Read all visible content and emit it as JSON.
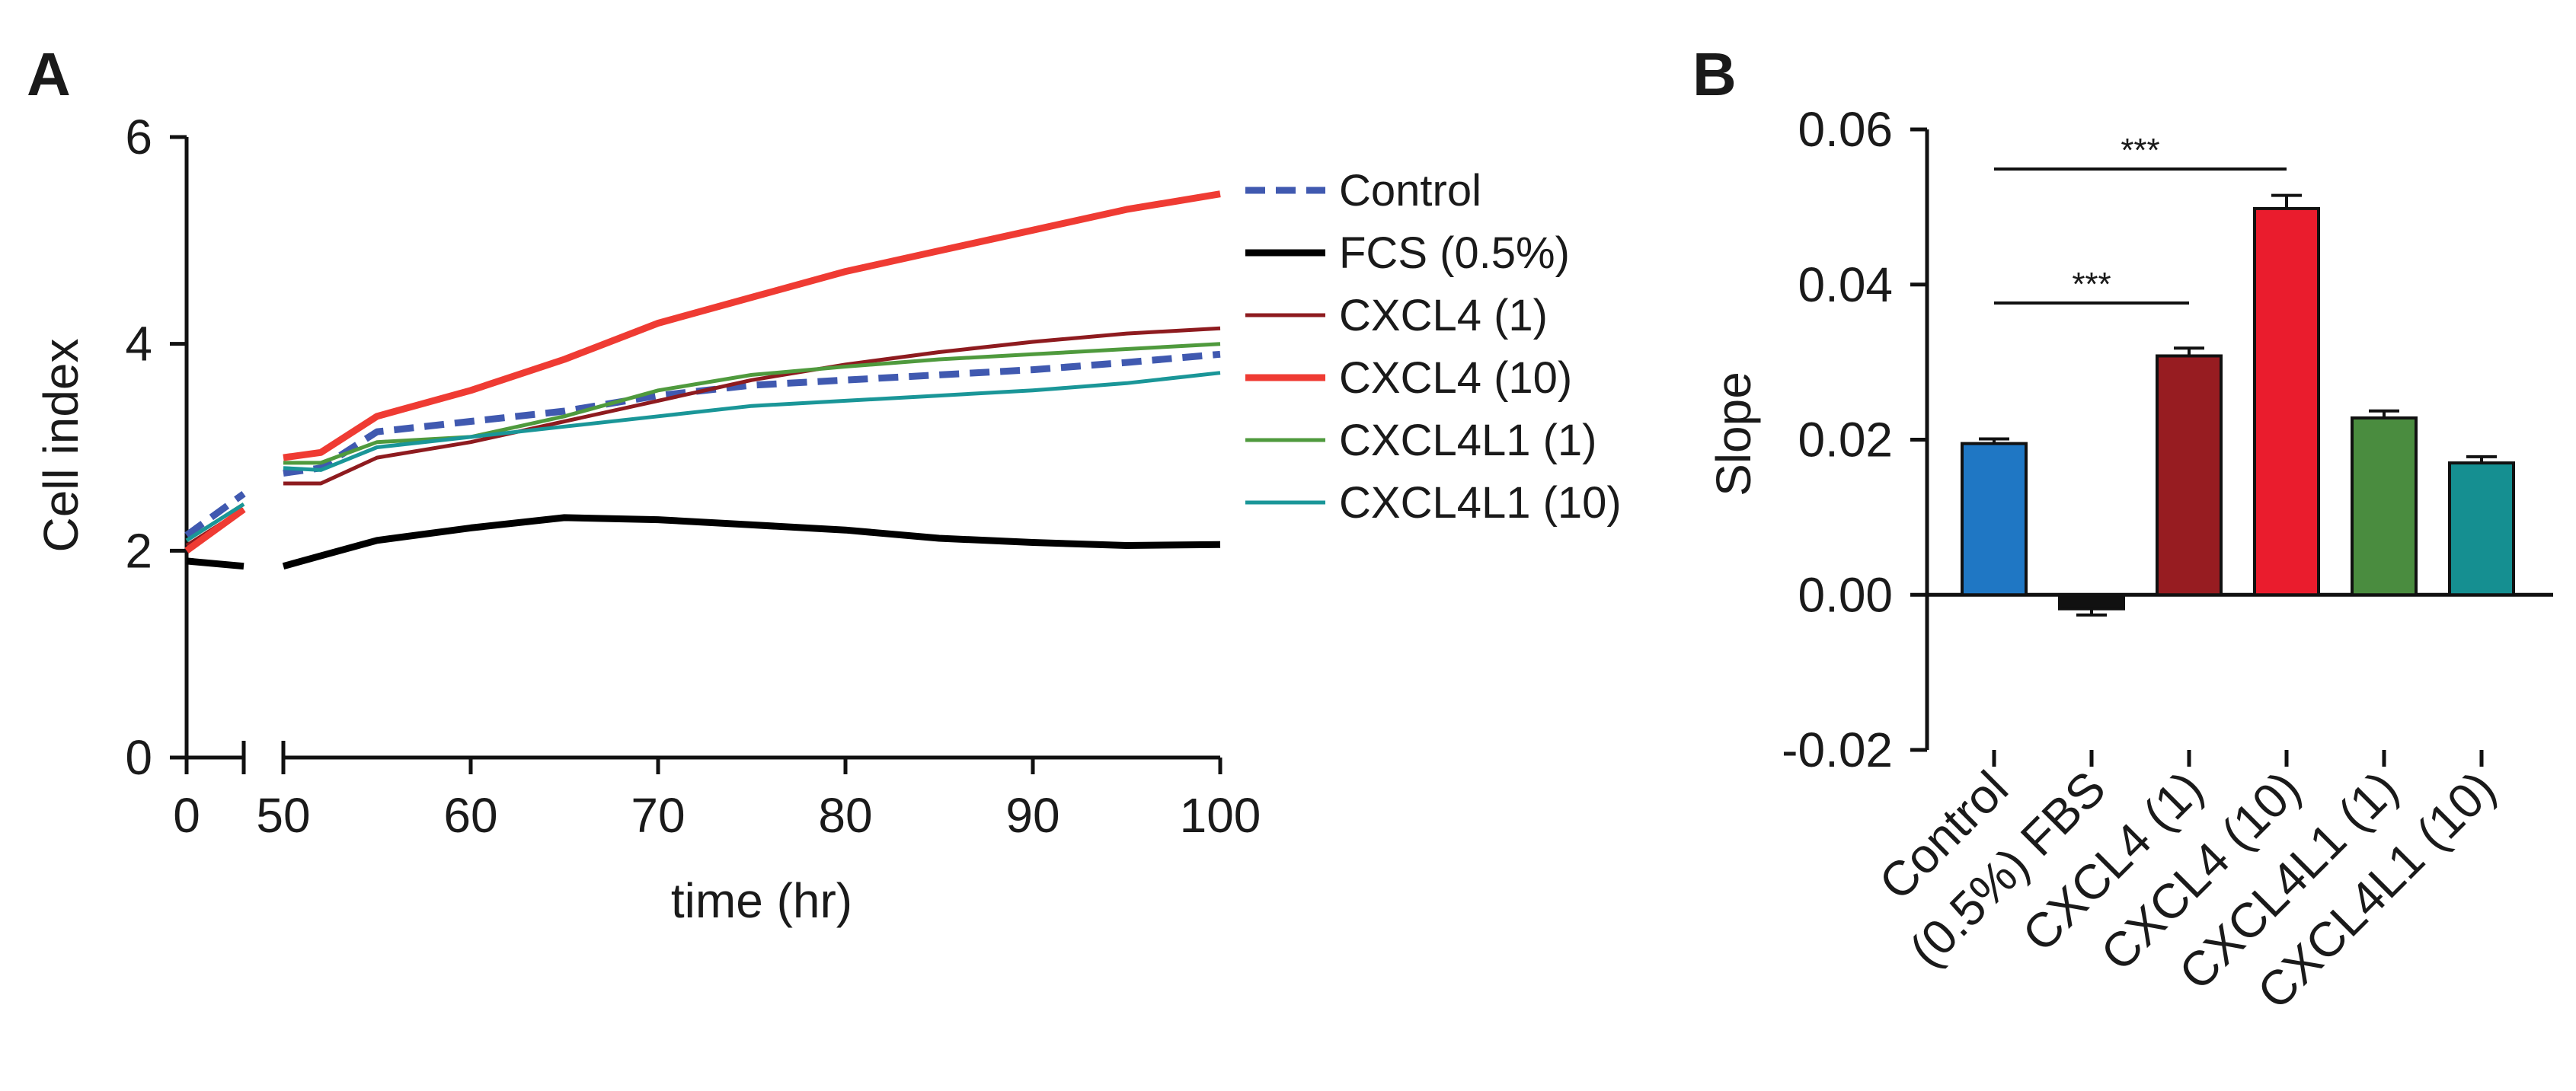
{
  "panels": {
    "a_label": "A",
    "b_label": "B"
  },
  "chart_data": [
    {
      "type": "line",
      "panel": "A",
      "title": "",
      "xlabel": "time (hr)",
      "ylabel": "Cell index",
      "xlim_break": [
        [
          0,
          5
        ],
        [
          50,
          100
        ]
      ],
      "ylim": [
        0,
        6
      ],
      "x_ticks": [
        "0",
        "50",
        "60",
        "70",
        "80",
        "90",
        "100"
      ],
      "y_ticks": [
        "0",
        "2",
        "4",
        "6"
      ],
      "legend_position": "right",
      "series": [
        {
          "name": "Control",
          "color": "#4059b0",
          "style": "dashed",
          "x": [
            0,
            5,
            50,
            52,
            55,
            60,
            65,
            70,
            75,
            80,
            85,
            90,
            95,
            100
          ],
          "y": [
            2.15,
            2.55,
            2.75,
            2.8,
            3.15,
            3.25,
            3.35,
            3.5,
            3.6,
            3.65,
            3.7,
            3.75,
            3.82,
            3.9
          ]
        },
        {
          "name": "FCS (0.5%)",
          "color": "#000000",
          "style": "thick",
          "x": [
            0,
            5,
            50,
            52,
            55,
            60,
            65,
            70,
            75,
            80,
            85,
            90,
            95,
            100
          ],
          "y": [
            1.9,
            1.85,
            1.85,
            1.95,
            2.1,
            2.22,
            2.32,
            2.3,
            2.25,
            2.2,
            2.12,
            2.08,
            2.05,
            2.06
          ]
        },
        {
          "name": "CXCL4 (1)",
          "color": "#8e1b1f",
          "style": "thin",
          "x": [
            0,
            5,
            50,
            52,
            55,
            60,
            65,
            70,
            75,
            80,
            85,
            90,
            95,
            100
          ],
          "y": [
            2.05,
            2.4,
            2.65,
            2.65,
            2.9,
            3.05,
            3.25,
            3.45,
            3.65,
            3.8,
            3.92,
            4.02,
            4.1,
            4.15
          ]
        },
        {
          "name": "CXCL4 (10)",
          "color": "#ef3b33",
          "style": "medium",
          "x": [
            0,
            5,
            50,
            52,
            55,
            60,
            65,
            70,
            75,
            80,
            85,
            90,
            95,
            100
          ],
          "y": [
            2.0,
            2.4,
            2.9,
            2.95,
            3.3,
            3.55,
            3.85,
            4.2,
            4.45,
            4.7,
            4.9,
            5.1,
            5.3,
            5.45
          ]
        },
        {
          "name": "CXCL4L1 (1)",
          "color": "#4f9a3d",
          "style": "thin",
          "x": [
            0,
            5,
            50,
            52,
            55,
            60,
            65,
            70,
            75,
            80,
            85,
            90,
            95,
            100
          ],
          "y": [
            2.1,
            2.45,
            2.85,
            2.85,
            3.05,
            3.1,
            3.3,
            3.55,
            3.7,
            3.78,
            3.85,
            3.9,
            3.95,
            4.0
          ]
        },
        {
          "name": "CXCL4L1 (10)",
          "color": "#1a9698",
          "style": "thin",
          "x": [
            0,
            5,
            50,
            52,
            55,
            60,
            65,
            70,
            75,
            80,
            85,
            90,
            95,
            100
          ],
          "y": [
            2.1,
            2.45,
            2.8,
            2.78,
            3.0,
            3.1,
            3.2,
            3.3,
            3.4,
            3.45,
            3.5,
            3.55,
            3.62,
            3.72
          ]
        }
      ]
    },
    {
      "type": "bar",
      "panel": "B",
      "title": "",
      "xlabel": "",
      "ylabel": "Slope",
      "ylim": [
        -0.02,
        0.06
      ],
      "y_ticks": [
        "0.06",
        "0.04",
        "0.02",
        "0.00",
        "-0.02"
      ],
      "categories": [
        "Control",
        "(0.5%) FBS",
        "CXCL4 (1)",
        "CXCL4 (10)",
        "CXCL4L1 (1)",
        "CXCL4L1 (10)"
      ],
      "values": [
        0.0195,
        -0.0018,
        0.0308,
        0.0498,
        0.0228,
        0.017
      ],
      "errors": [
        0.0006,
        0.0008,
        0.001,
        0.0017,
        0.0009,
        0.0008
      ],
      "colors": [
        "#1f77c4",
        "#111111",
        "#971c21",
        "#ea1c2d",
        "#4a8c3f",
        "#158f91"
      ],
      "annotations": [
        {
          "from": 0,
          "to": 3,
          "label": "***"
        },
        {
          "from": 0,
          "to": 2,
          "label": "***"
        }
      ]
    }
  ]
}
